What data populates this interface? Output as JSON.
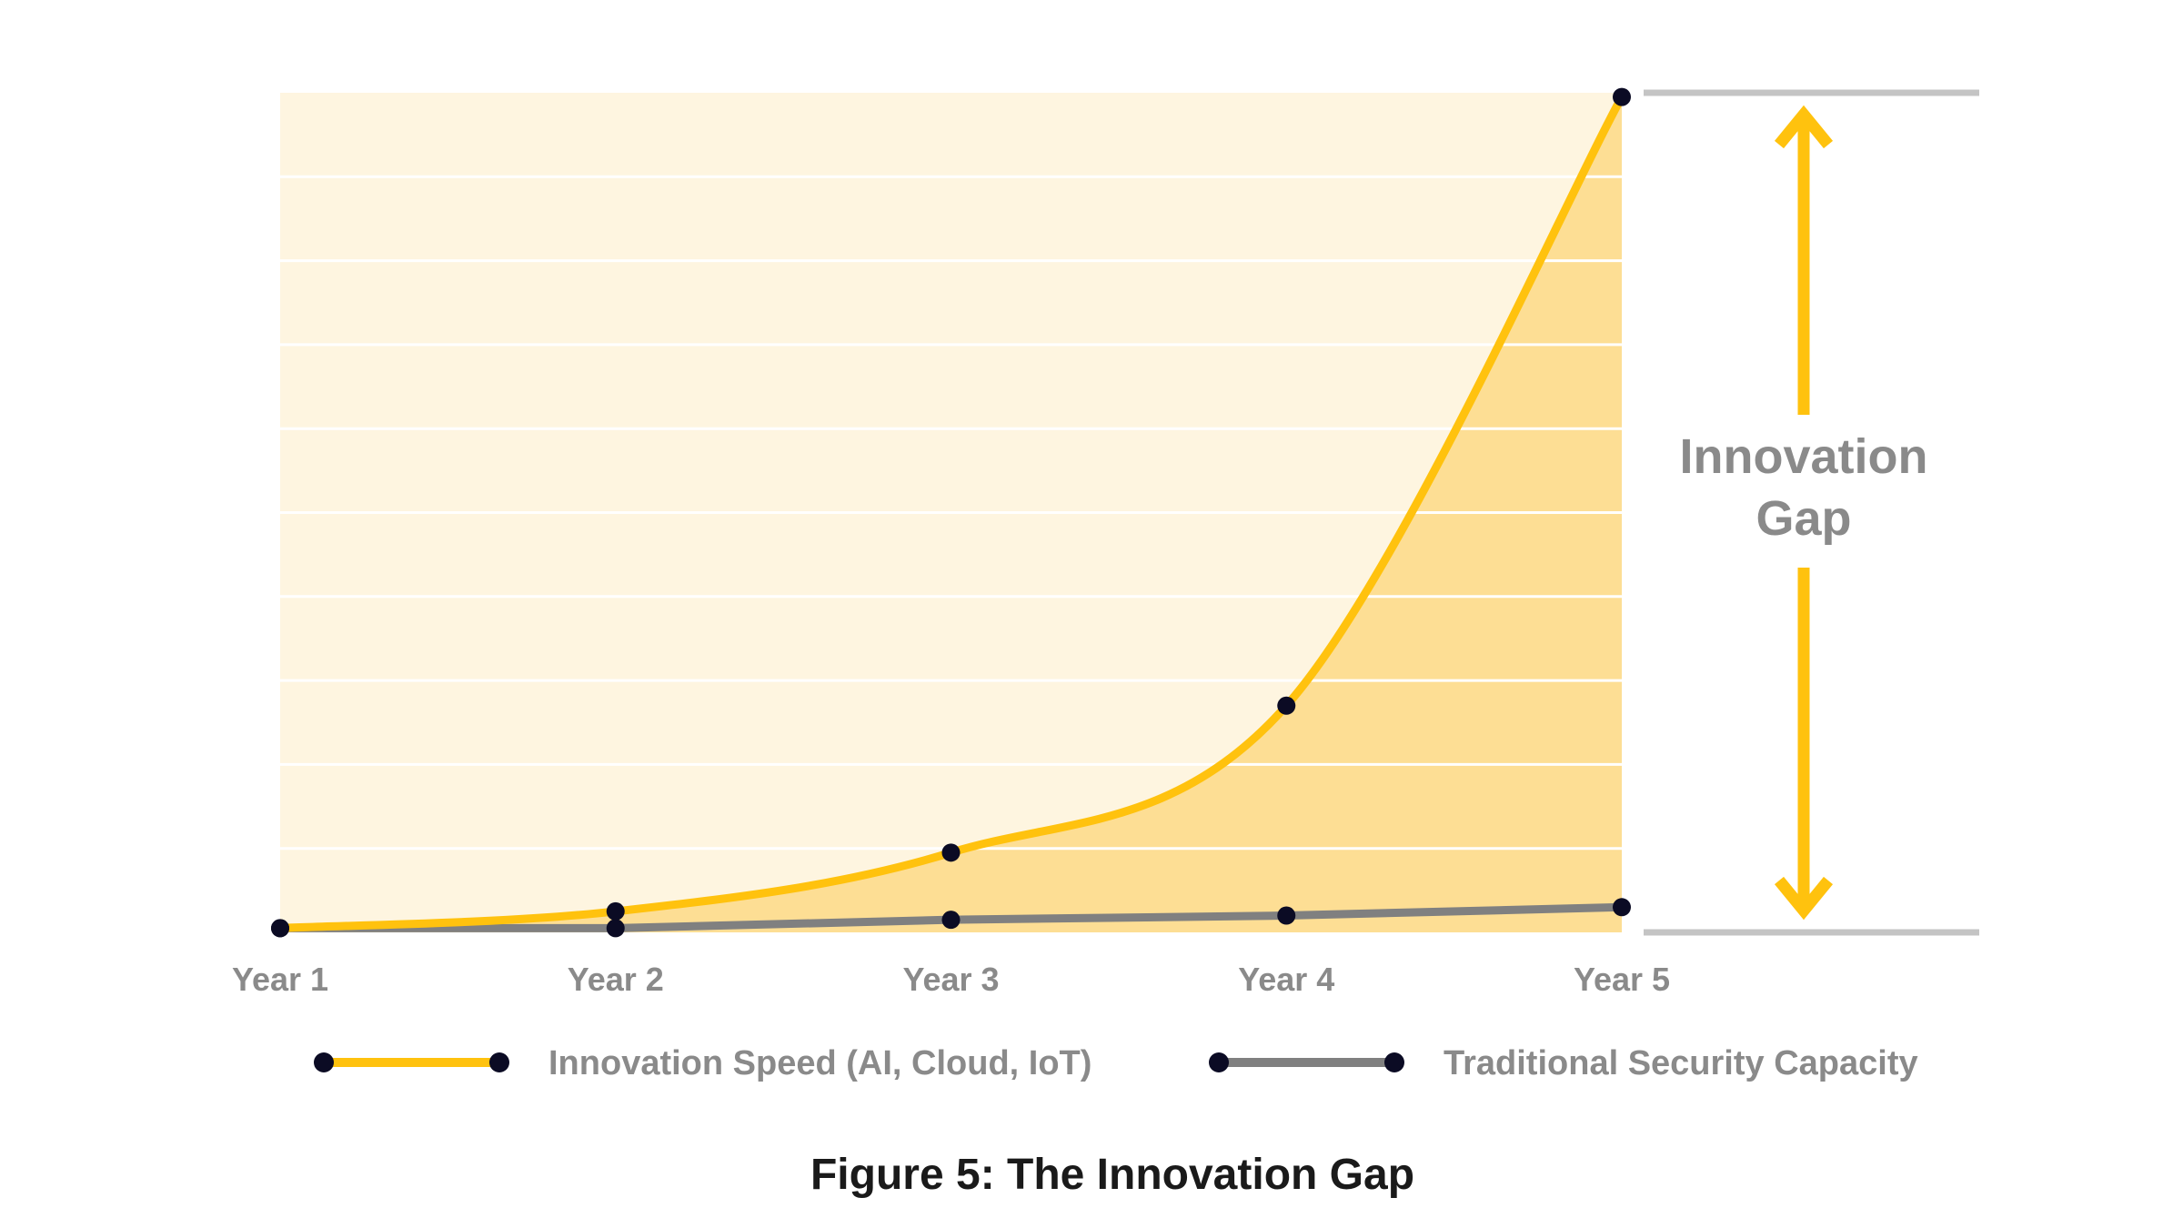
{
  "chart_data": {
    "type": "area",
    "caption": "Figure 5: The Innovation Gap",
    "categories": [
      "Year 1",
      "Year 2",
      "Year 3",
      "Year 4",
      "Year 5"
    ],
    "ylim": [
      0,
      100
    ],
    "y_gridlines": 10,
    "series": [
      {
        "name": "Innovation Speed (AI, Cloud, IoT)",
        "values": [
          0.5,
          2.5,
          9.5,
          27,
          99.5
        ],
        "color": "#FFC20E",
        "fill": "#FDDE94"
      },
      {
        "name": "Traditional Security Capacity",
        "values": [
          0.5,
          0.5,
          1.5,
          2.0,
          3.0
        ],
        "color": "#808080"
      }
    ],
    "annotation": {
      "line1": "Innovation",
      "line2": "Gap",
      "color": "#FFC20E"
    }
  },
  "colors": {
    "plot_background": "#FEF5E0",
    "gridline": "#FFFFFF",
    "marker": "#0B0B24",
    "bracket_line": "#C4C4C4",
    "axis_text": "#8A8A8A",
    "caption_text": "#1A1A1A"
  }
}
